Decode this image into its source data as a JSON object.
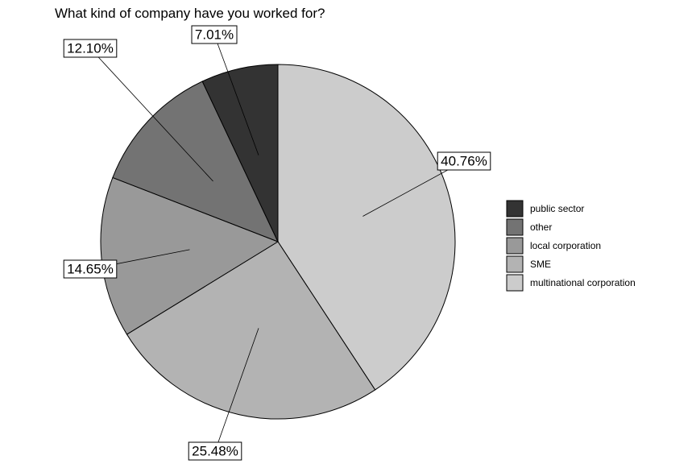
{
  "chart_data": {
    "type": "pie",
    "title": "What kind of company have you worked for?",
    "categories": [
      "multinational corporation",
      "SME",
      "local corporation",
      "other",
      "public sector"
    ],
    "values": [
      40.76,
      25.48,
      14.65,
      12.1,
      7.01
    ],
    "labels": [
      "40.76%",
      "25.48%",
      "14.65%",
      "12.10%",
      "7.01%"
    ],
    "colors": [
      "#cccccc",
      "#b3b3b3",
      "#999999",
      "#737373",
      "#333333"
    ],
    "legend": {
      "position": "right",
      "items": [
        {
          "label": "public sector",
          "color": "#333333"
        },
        {
          "label": "other",
          "color": "#737373"
        },
        {
          "label": "local corporation",
          "color": "#999999"
        },
        {
          "label": "SME",
          "color": "#b3b3b3"
        },
        {
          "label": "multinational corporation",
          "color": "#cccccc"
        }
      ]
    }
  }
}
